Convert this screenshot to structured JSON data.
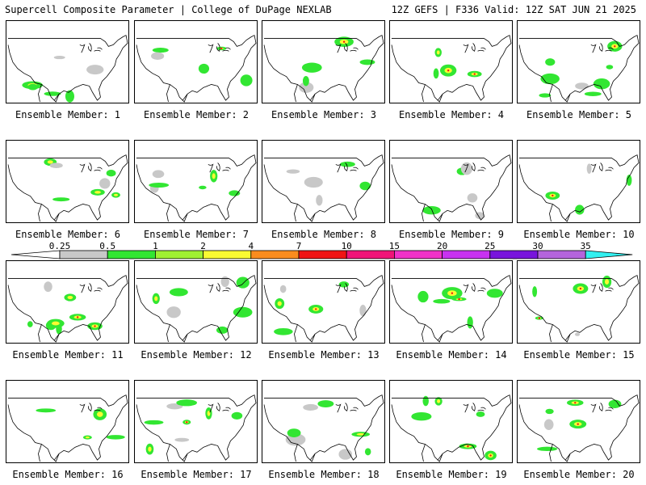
{
  "header": {
    "left": "Supercell Composite Parameter | College of DuPage NEXLAB",
    "right": "12Z GEFS | F336 Valid: 12Z SAT JUN 21 2025"
  },
  "members": [
    "Ensemble Member: 1",
    "Ensemble Member: 2",
    "Ensemble Member: 3",
    "Ensemble Member: 4",
    "Ensemble Member: 5",
    "Ensemble Member: 6",
    "Ensemble Member: 7",
    "Ensemble Member: 8",
    "Ensemble Member: 9",
    "Ensemble Member: 10",
    "Ensemble Member: 11",
    "Ensemble Member: 12",
    "Ensemble Member: 13",
    "Ensemble Member: 14",
    "Ensemble Member: 15",
    "Ensemble Member: 16",
    "Ensemble Member: 17",
    "Ensemble Member: 18",
    "Ensemble Member: 19",
    "Ensemble Member: 20"
  ],
  "colorbar": {
    "ticks": [
      "0.25",
      "0.5",
      "1",
      "2",
      "4",
      "7",
      "10",
      "15",
      "20",
      "25",
      "30",
      "35"
    ],
    "colors": [
      "#c8c8c8",
      "#32e632",
      "#a0f032",
      "#fafa32",
      "#fa8c1e",
      "#f01414",
      "#f01478",
      "#f032c8",
      "#c832f0",
      "#7814dc",
      "#b464dc",
      "#32f0f0"
    ]
  }
}
